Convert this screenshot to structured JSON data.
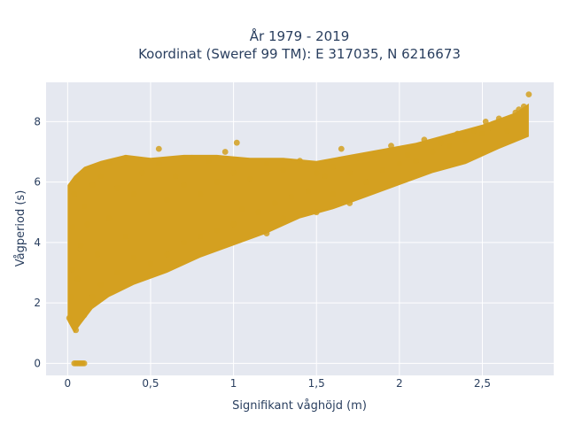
{
  "chart_data": {
    "type": "scatter",
    "title": [
      "År 1979 - 2019",
      "Koordinat (Sweref 99 TM): E 317035, N 6216673"
    ],
    "xlabel": "Signifikant våghöjd (m)",
    "ylabel": "Vågperiod (s)",
    "xlim": [
      -0.13,
      2.93
    ],
    "ylim": [
      -0.4,
      9.3
    ],
    "x_ticks": [
      0,
      0.5,
      1,
      1.5,
      2,
      2.5
    ],
    "x_tick_labels": [
      "0",
      "0,5",
      "1",
      "1,5",
      "2",
      "2,5"
    ],
    "y_ticks": [
      0,
      2,
      4,
      6,
      8
    ],
    "y_tick_labels": [
      "0",
      "2",
      "4",
      "6",
      "8"
    ],
    "grid": true,
    "legend": false,
    "marker_color": "#d4a020",
    "background_color": "#e5e8f0",
    "series": [
      {
        "points": [
          [
            0.01,
            1.5
          ],
          [
            0.02,
            2.2
          ],
          [
            0.03,
            3.1
          ],
          [
            0.03,
            4.5
          ],
          [
            0.04,
            5.6
          ],
          [
            0.05,
            6.1
          ],
          [
            0.05,
            1.1
          ],
          [
            0.06,
            2.8
          ],
          [
            0.08,
            3.9
          ],
          [
            0.1,
            5.2
          ],
          [
            0.1,
            1.6
          ],
          [
            0.12,
            4.6
          ],
          [
            0.15,
            5.9
          ],
          [
            0.15,
            2.2
          ],
          [
            0.18,
            3.6
          ],
          [
            0.2,
            6.2
          ],
          [
            0.2,
            2.6
          ],
          [
            0.25,
            4.8
          ],
          [
            0.25,
            6.6
          ],
          [
            0.3,
            3.0
          ],
          [
            0.3,
            5.8
          ],
          [
            0.35,
            4.2
          ],
          [
            0.35,
            6.8
          ],
          [
            0.4,
            3.5
          ],
          [
            0.4,
            5.6
          ],
          [
            0.45,
            6.3
          ],
          [
            0.5,
            3.3
          ],
          [
            0.5,
            5.0
          ],
          [
            0.55,
            6.6
          ],
          [
            0.55,
            7.1
          ],
          [
            0.6,
            3.6
          ],
          [
            0.6,
            5.4
          ],
          [
            0.65,
            6.2
          ],
          [
            0.7,
            4.0
          ],
          [
            0.7,
            5.9
          ],
          [
            0.75,
            6.8
          ],
          [
            0.8,
            4.2
          ],
          [
            0.8,
            5.6
          ],
          [
            0.85,
            6.7
          ],
          [
            0.9,
            4.4
          ],
          [
            0.9,
            6.0
          ],
          [
            0.95,
            7.0
          ],
          [
            1.0,
            4.6
          ],
          [
            1.0,
            6.3
          ],
          [
            1.02,
            7.3
          ],
          [
            1.05,
            5.1
          ],
          [
            1.1,
            6.1
          ],
          [
            1.15,
            5.0
          ],
          [
            1.2,
            6.6
          ],
          [
            1.25,
            5.3
          ],
          [
            1.3,
            6.4
          ],
          [
            1.35,
            5.5
          ],
          [
            1.4,
            6.7
          ],
          [
            1.45,
            5.7
          ],
          [
            1.5,
            6.3
          ],
          [
            1.55,
            6.2
          ],
          [
            1.6,
            6.5
          ],
          [
            1.65,
            7.1
          ],
          [
            1.7,
            6.3
          ],
          [
            1.75,
            6.8
          ],
          [
            1.8,
            6.0
          ],
          [
            1.85,
            6.9
          ],
          [
            1.9,
            6.4
          ],
          [
            1.95,
            7.2
          ],
          [
            2.0,
            6.6
          ],
          [
            2.05,
            6.9
          ],
          [
            2.1,
            6.7
          ],
          [
            2.15,
            7.4
          ],
          [
            2.2,
            7.0
          ],
          [
            2.25,
            7.3
          ],
          [
            2.3,
            7.2
          ],
          [
            2.35,
            7.6
          ],
          [
            2.4,
            7.4
          ],
          [
            2.45,
            7.7
          ],
          [
            2.5,
            7.6
          ],
          [
            2.52,
            8.0
          ],
          [
            2.55,
            7.8
          ],
          [
            2.6,
            8.1
          ],
          [
            2.65,
            7.7
          ],
          [
            2.7,
            8.3
          ],
          [
            2.72,
            8.4
          ],
          [
            2.75,
            8.5
          ],
          [
            2.78,
            8.9
          ],
          [
            1.2,
            4.3
          ],
          [
            1.3,
            4.8
          ],
          [
            1.5,
            5.0
          ],
          [
            1.6,
            5.6
          ],
          [
            1.7,
            5.3
          ]
        ]
      }
    ],
    "zero_cluster_x": [
      0.04,
      0.1
    ]
  }
}
